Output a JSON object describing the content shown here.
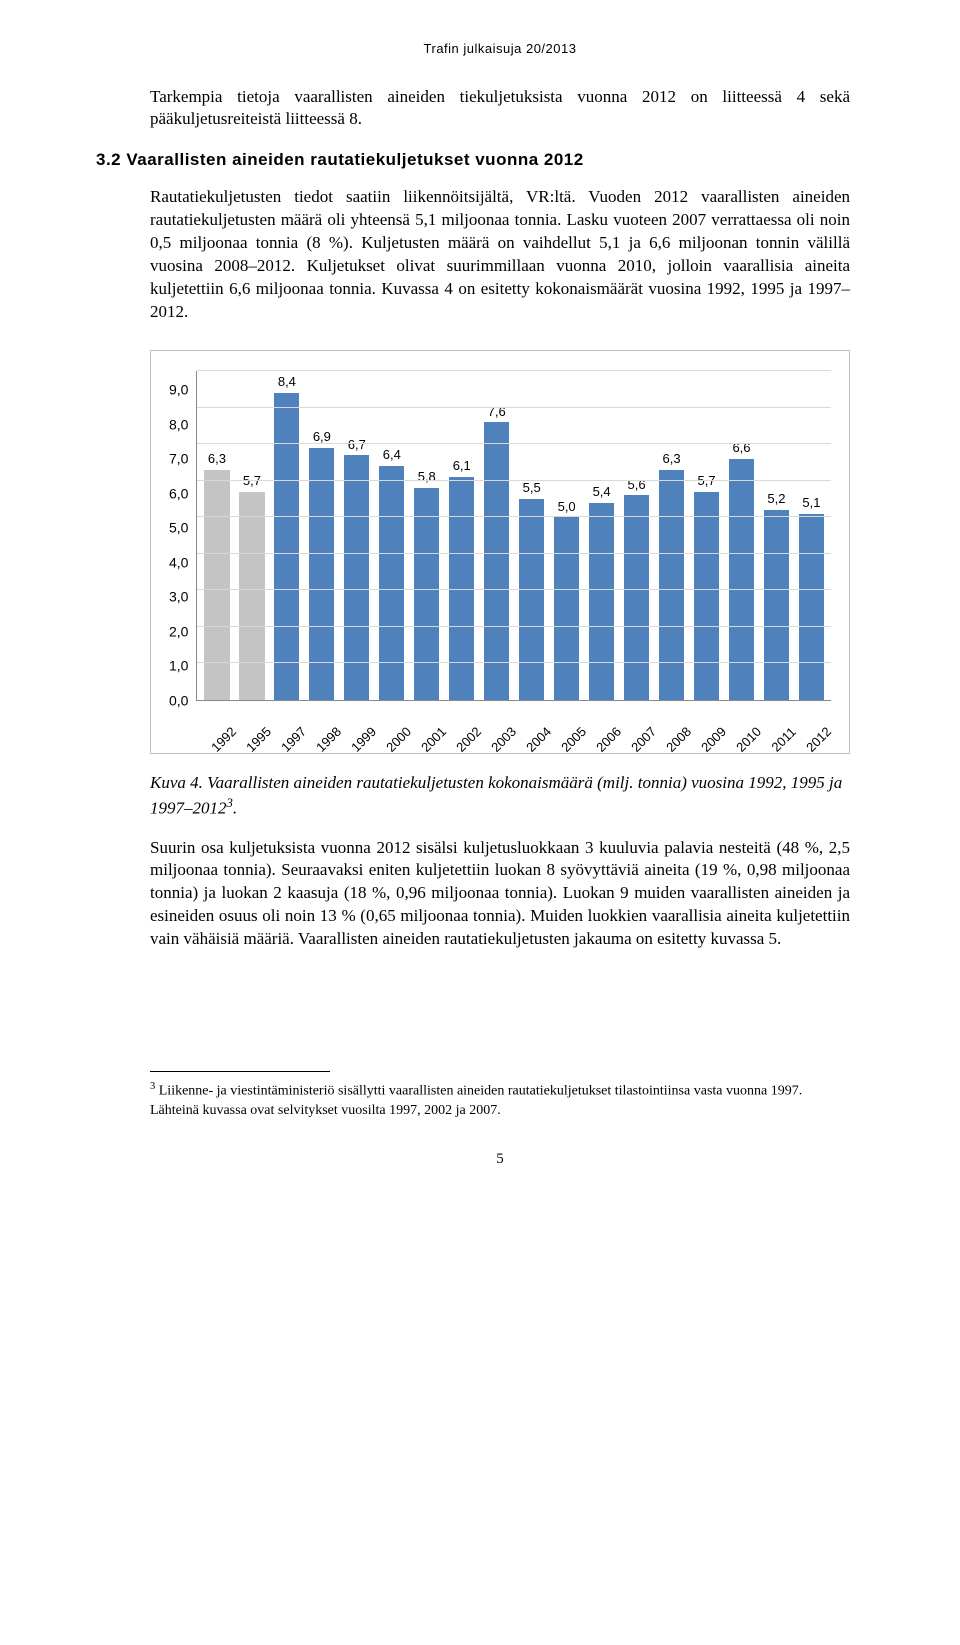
{
  "header": {
    "running": "Trafin julkaisuja 20/2013"
  },
  "intro": {
    "para1": "Tarkempia tietoja vaarallisten aineiden tiekuljetuksista vuonna 2012 on liitteessä 4 sekä pääkuljetusreiteistä liitteessä 8."
  },
  "section": {
    "number": "3.2",
    "title": "Vaarallisten aineiden rautatiekuljetukset vuonna 2012",
    "body": "Rautatiekuljetusten tiedot saatiin liikennöitsijältä, VR:ltä. Vuoden 2012 vaarallisten aineiden rautatiekuljetusten määrä oli yhteensä 5,1 miljoonaa tonnia. Lasku vuoteen 2007 verrattaessa oli noin 0,5 miljoonaa tonnia (8 %). Kuljetusten määrä on vaihdellut 5,1 ja 6,6 miljoonan tonnin välillä vuosina 2008–2012. Kuljetukset olivat suurimmillaan vuonna 2010, jolloin vaarallisia aineita kuljetettiin 6,6 miljoonaa tonnia. Kuvassa 4 on esitetty kokonaismäärät vuosina 1992, 1995 ja 1997–2012."
  },
  "chart": {
    "type": "bar",
    "ylim": [
      0,
      9
    ],
    "ytick_step": 1,
    "yticks": [
      "9,0",
      "8,0",
      "7,0",
      "6,0",
      "5,0",
      "4,0",
      "3,0",
      "2,0",
      "1,0",
      "0,0"
    ],
    "grid_color": "#d9d9d9",
    "axis_color": "#888888",
    "background_color": "#ffffff",
    "bar_color_default": "#4f81bd",
    "bar_color_alt": "#c4c4c4",
    "label_fontsize": 13,
    "series": [
      {
        "year": "1992",
        "value": 6.3,
        "label": "6,3",
        "color": "#c4c4c4"
      },
      {
        "year": "1995",
        "value": 5.7,
        "label": "5,7",
        "color": "#c4c4c4"
      },
      {
        "year": "1997",
        "value": 8.4,
        "label": "8,4",
        "color": "#4f81bd"
      },
      {
        "year": "1998",
        "value": 6.9,
        "label": "6,9",
        "color": "#4f81bd"
      },
      {
        "year": "1999",
        "value": 6.7,
        "label": "6,7",
        "color": "#4f81bd"
      },
      {
        "year": "2000",
        "value": 6.4,
        "label": "6,4",
        "color": "#4f81bd"
      },
      {
        "year": "2001",
        "value": 5.8,
        "label": "5,8",
        "color": "#4f81bd"
      },
      {
        "year": "2002",
        "value": 6.1,
        "label": "6,1",
        "color": "#4f81bd"
      },
      {
        "year": "2003",
        "value": 7.6,
        "label": "7,6",
        "color": "#4f81bd"
      },
      {
        "year": "2004",
        "value": 5.5,
        "label": "5,5",
        "color": "#4f81bd"
      },
      {
        "year": "2005",
        "value": 5.0,
        "label": "5,0",
        "color": "#4f81bd"
      },
      {
        "year": "2006",
        "value": 5.4,
        "label": "5,4",
        "color": "#4f81bd"
      },
      {
        "year": "2007",
        "value": 5.6,
        "label": "5,6",
        "color": "#4f81bd"
      },
      {
        "year": "2008",
        "value": 6.3,
        "label": "6,3",
        "color": "#4f81bd"
      },
      {
        "year": "2009",
        "value": 5.7,
        "label": "5,7",
        "color": "#4f81bd"
      },
      {
        "year": "2010",
        "value": 6.6,
        "label": "6,6",
        "color": "#4f81bd"
      },
      {
        "year": "2011",
        "value": 5.2,
        "label": "5,2",
        "color": "#4f81bd"
      },
      {
        "year": "2012",
        "value": 5.1,
        "label": "5,1",
        "color": "#4f81bd"
      }
    ]
  },
  "caption": {
    "lead": "Kuva 4. Vaarallisten aineiden rautatiekuljetusten kokonaismäärä (milj. tonnia) vuosina 1992, 1995 ja 1997–2012",
    "sup": "3",
    "trail": "."
  },
  "after": {
    "para": "Suurin osa kuljetuksista vuonna 2012 sisälsi kuljetusluokkaan 3 kuuluvia palavia nesteitä (48 %, 2,5 miljoonaa tonnia). Seuraavaksi eniten kuljetettiin luokan 8 syövyttäviä aineita (19 %, 0,98 miljoonaa tonnia) ja luokan 2 kaasuja (18 %, 0,96 miljoonaa tonnia). Luokan 9 muiden vaarallisten aineiden ja esineiden osuus oli noin 13 % (0,65 miljoonaa tonnia). Muiden luokkien vaarallisia aineita kuljetettiin vain vähäisiä määriä. Vaarallisten aineiden rautatiekuljetusten jakauma on esitetty kuvassa 5."
  },
  "footnote": {
    "marker": "3",
    "text": " Liikenne- ja viestintäministeriö sisällytti vaarallisten aineiden rautatiekuljetukset tilastointiinsa vasta vuonna 1997. Lähteinä kuvassa ovat selvitykset vuosilta 1997, 2002 ja 2007."
  },
  "page": {
    "number": "5"
  }
}
